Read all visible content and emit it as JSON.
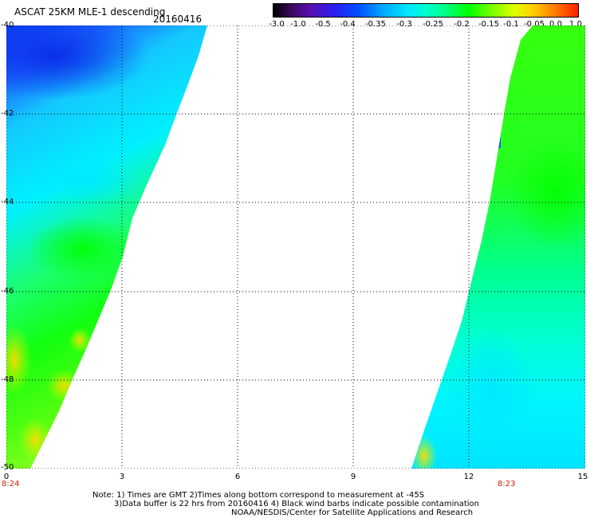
{
  "header": {
    "title": "ASCAT 25KM MLE-1 descending",
    "date": "20160416"
  },
  "colorbar": {
    "ticks": [
      "-3.0",
      "-1.0",
      "-0.5",
      "-0.4",
      "-0.35",
      "-0.3",
      "-0.25",
      "-0.2",
      "-0.15",
      "-0.1",
      "-0.05",
      "0.0",
      "1.0"
    ]
  },
  "axes": {
    "y_ticks": [
      "-40",
      "-42",
      "-44",
      "-46",
      "-48",
      "-50"
    ],
    "x_ticks": [
      "0",
      "3",
      "6",
      "9",
      "12",
      "15"
    ],
    "time_labels": [
      "8:24",
      "8:23"
    ]
  },
  "notes": {
    "line1": "Note: 1) Times are GMT 2)Times along bottom correspond to measurement at -45S",
    "line2": "3)Data buffer is 22 hrs from 20160416 4) Black wind barbs indicate possible contamination",
    "line3": "NOAA/NESDIS/Center for Satellite Applications and Research"
  },
  "map": {
    "lat_range": [
      -50,
      -40
    ],
    "lon_range": [
      0,
      15
    ],
    "value_range": [
      -0.45,
      0.0
    ]
  }
}
